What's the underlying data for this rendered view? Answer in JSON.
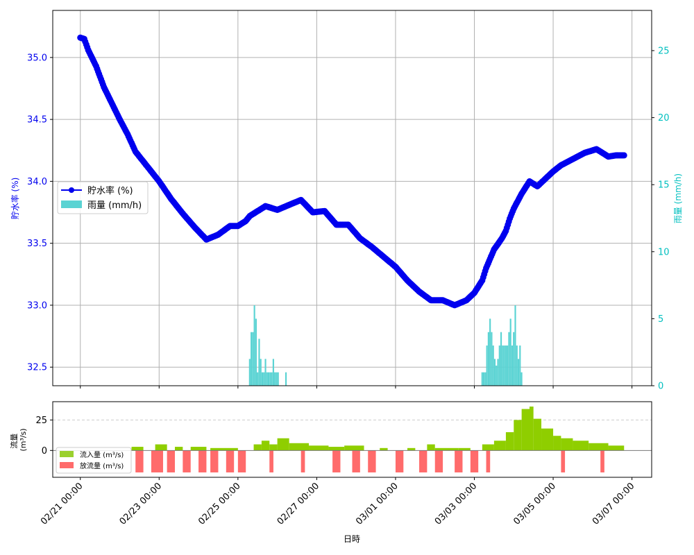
{
  "chart_data": [
    {
      "type": "line",
      "xaxis": {
        "ticks": [
          "02/21 00:00",
          "02/23 00:00",
          "02/25 00:00",
          "02/27 00:00",
          "03/01 00:00",
          "03/03 00:00",
          "03/05 00:00",
          "03/07 00:00"
        ],
        "tick_days": [
          0,
          2,
          4,
          6,
          8,
          10,
          12,
          14
        ],
        "range_days": [
          -0.7,
          14.5
        ]
      },
      "y_left": {
        "label": "貯水率 (%)",
        "range": [
          32.35,
          35.38
        ],
        "ticks": [
          "32.5",
          "33.0",
          "33.5",
          "34.0",
          "34.5",
          "35.0"
        ],
        "color": "#0000ee"
      },
      "y_right": {
        "label": "雨量 (mm/h)",
        "range": [
          0,
          28
        ],
        "ticks": [
          "0",
          "5",
          "10",
          "15",
          "20",
          "25"
        ],
        "color": "#00bfbf"
      },
      "grid": true,
      "legend": {
        "position": "center-left",
        "items": [
          "貯水率 (%)",
          "雨量 (mm/h)"
        ]
      },
      "series": [
        {
          "name": "貯水率 (%)",
          "kind": "line-markers",
          "color": "#0000ee",
          "x_days": [
            0.0,
            0.1,
            0.2,
            0.4,
            0.6,
            0.8,
            1.0,
            1.2,
            1.4,
            1.7,
            2.0,
            2.3,
            2.6,
            2.9,
            3.2,
            3.5,
            3.8,
            4.0,
            4.2,
            4.3,
            4.5,
            4.7,
            5.0,
            5.3,
            5.6,
            5.9,
            6.2,
            6.5,
            6.8,
            7.1,
            7.4,
            7.7,
            8.0,
            8.3,
            8.6,
            8.9,
            9.2,
            9.5,
            9.8,
            10.0,
            10.2,
            10.3,
            10.5,
            10.7,
            10.8,
            10.9,
            11.0,
            11.2,
            11.4,
            11.6,
            11.8,
            12.0,
            12.2,
            12.5,
            12.8,
            13.1,
            13.4,
            13.6,
            13.7,
            13.8
          ],
          "values": [
            35.16,
            35.15,
            35.06,
            34.93,
            34.76,
            34.63,
            34.5,
            34.38,
            34.24,
            34.12,
            34.0,
            33.86,
            33.74,
            33.63,
            33.53,
            33.57,
            33.64,
            33.64,
            33.68,
            33.72,
            33.76,
            33.8,
            33.77,
            33.81,
            33.85,
            33.75,
            33.76,
            33.65,
            33.65,
            33.54,
            33.47,
            33.39,
            33.31,
            33.2,
            33.11,
            33.04,
            33.04,
            33.0,
            33.04,
            33.1,
            33.2,
            33.3,
            33.45,
            33.54,
            33.6,
            33.7,
            33.78,
            33.9,
            34.0,
            33.96,
            34.02,
            34.08,
            34.13,
            34.18,
            34.23,
            34.26,
            34.2,
            34.21,
            34.21,
            34.21
          ]
        },
        {
          "name": "雨量 (mm/h)",
          "kind": "bar",
          "axis": "right",
          "color": "#5ad3d3",
          "x_days": [
            4.3,
            4.34,
            4.38,
            4.42,
            4.46,
            4.5,
            4.54,
            4.58,
            4.62,
            4.66,
            4.7,
            4.74,
            4.78,
            4.82,
            4.86,
            4.9,
            4.94,
            4.98,
            5.02,
            5.06,
            5.1,
            5.14,
            5.18,
            5.22,
            10.2,
            10.24,
            10.28,
            10.32,
            10.36,
            10.4,
            10.44,
            10.48,
            10.52,
            10.56,
            10.6,
            10.64,
            10.68,
            10.72,
            10.76,
            10.8,
            10.84,
            10.88,
            10.92,
            10.96,
            11.0,
            11.04,
            11.08,
            11.12,
            11.16,
            11.2
          ],
          "values": [
            2,
            4,
            4,
            6,
            5,
            1,
            3.5,
            2,
            1,
            1,
            2,
            1,
            1,
            1,
            1,
            2,
            1,
            1,
            1,
            0,
            0,
            0,
            0,
            1,
            1,
            1,
            1,
            3,
            4,
            5,
            4,
            3,
            2,
            1.5,
            2,
            3,
            4,
            3,
            3,
            3,
            3,
            4,
            5,
            3,
            4,
            6,
            3,
            2,
            3,
            1
          ]
        }
      ]
    },
    {
      "type": "bar",
      "ylabel": "流量\n(m³/s)",
      "y_range": [
        -22,
        40
      ],
      "ticks": [
        "0",
        "25"
      ],
      "grid_dashed_at": 25,
      "legend": {
        "position": "lower-left",
        "items": [
          "流入量 (m³/s)",
          "放流量 (m³/s)"
        ]
      },
      "xlabel": "日時",
      "series": [
        {
          "name": "流入量 (m³/s)",
          "color": "#8fce00",
          "segments": [
            {
              "start": 0.2,
              "end": 0.4,
              "value": 0
            },
            {
              "start": 1.3,
              "end": 1.6,
              "value": 3
            },
            {
              "start": 1.9,
              "end": 2.2,
              "value": 5
            },
            {
              "start": 2.4,
              "end": 2.6,
              "value": 3
            },
            {
              "start": 2.8,
              "end": 3.2,
              "value": 3
            },
            {
              "start": 3.3,
              "end": 4.0,
              "value": 2
            },
            {
              "start": 4.4,
              "end": 4.6,
              "value": 5
            },
            {
              "start": 4.6,
              "end": 4.8,
              "value": 8
            },
            {
              "start": 4.8,
              "end": 5.0,
              "value": 5
            },
            {
              "start": 5.0,
              "end": 5.3,
              "value": 10
            },
            {
              "start": 5.3,
              "end": 5.8,
              "value": 6
            },
            {
              "start": 5.8,
              "end": 6.3,
              "value": 4
            },
            {
              "start": 6.3,
              "end": 6.7,
              "value": 3
            },
            {
              "start": 6.7,
              "end": 7.2,
              "value": 4
            },
            {
              "start": 7.6,
              "end": 7.8,
              "value": 2
            },
            {
              "start": 8.3,
              "end": 8.5,
              "value": 2
            },
            {
              "start": 8.8,
              "end": 9.0,
              "value": 5
            },
            {
              "start": 9.0,
              "end": 9.6,
              "value": 2
            },
            {
              "start": 9.6,
              "end": 9.9,
              "value": 2
            },
            {
              "start": 10.2,
              "end": 10.5,
              "value": 5
            },
            {
              "start": 10.5,
              "end": 10.8,
              "value": 8
            },
            {
              "start": 10.8,
              "end": 11.0,
              "value": 15
            },
            {
              "start": 11.0,
              "end": 11.2,
              "value": 25
            },
            {
              "start": 11.2,
              "end": 11.4,
              "value": 34
            },
            {
              "start": 11.4,
              "end": 11.5,
              "value": 36
            },
            {
              "start": 11.5,
              "end": 11.7,
              "value": 26
            },
            {
              "start": 11.7,
              "end": 12.0,
              "value": 18
            },
            {
              "start": 12.0,
              "end": 12.2,
              "value": 12
            },
            {
              "start": 12.2,
              "end": 12.5,
              "value": 10
            },
            {
              "start": 12.5,
              "end": 12.9,
              "value": 8
            },
            {
              "start": 12.9,
              "end": 13.4,
              "value": 6
            },
            {
              "start": 13.4,
              "end": 13.8,
              "value": 4
            }
          ]
        },
        {
          "name": "放流量 (m³/s)",
          "color": "#ff6b6b",
          "segments": [
            {
              "start": 1.4,
              "end": 1.6,
              "value": -18
            },
            {
              "start": 1.8,
              "end": 2.1,
              "value": -18
            },
            {
              "start": 2.2,
              "end": 2.4,
              "value": -18
            },
            {
              "start": 2.6,
              "end": 2.8,
              "value": -18
            },
            {
              "start": 3.0,
              "end": 3.2,
              "value": -18
            },
            {
              "start": 3.3,
              "end": 3.5,
              "value": -18
            },
            {
              "start": 3.7,
              "end": 3.9,
              "value": -18
            },
            {
              "start": 4.0,
              "end": 4.2,
              "value": -18
            },
            {
              "start": 4.8,
              "end": 4.9,
              "value": -18
            },
            {
              "start": 5.6,
              "end": 5.7,
              "value": -18
            },
            {
              "start": 6.4,
              "end": 6.6,
              "value": -18
            },
            {
              "start": 6.9,
              "end": 7.1,
              "value": -18
            },
            {
              "start": 7.3,
              "end": 7.5,
              "value": -18
            },
            {
              "start": 8.0,
              "end": 8.2,
              "value": -18
            },
            {
              "start": 8.6,
              "end": 8.8,
              "value": -18
            },
            {
              "start": 9.0,
              "end": 9.2,
              "value": -18
            },
            {
              "start": 9.5,
              "end": 9.7,
              "value": -18
            },
            {
              "start": 9.9,
              "end": 10.1,
              "value": -18
            },
            {
              "start": 10.3,
              "end": 10.4,
              "value": -18
            },
            {
              "start": 12.2,
              "end": 12.3,
              "value": -18
            },
            {
              "start": 13.2,
              "end": 13.3,
              "value": -18
            }
          ]
        }
      ]
    }
  ]
}
